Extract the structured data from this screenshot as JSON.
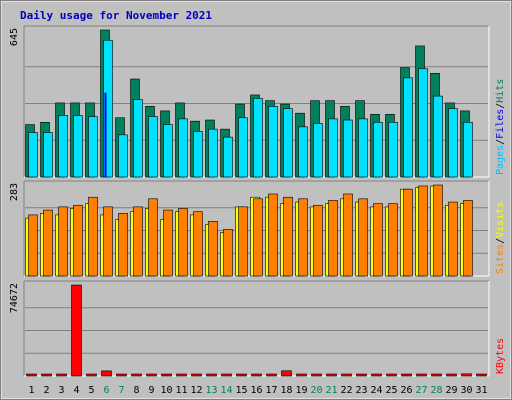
{
  "chart_data": {
    "type": "bar",
    "title": "Daily usage for November 2021",
    "categories": [
      "1",
      "2",
      "3",
      "4",
      "5",
      "6",
      "7",
      "8",
      "9",
      "10",
      "11",
      "12",
      "13",
      "14",
      "15",
      "16",
      "17",
      "18",
      "19",
      "20",
      "21",
      "22",
      "23",
      "24",
      "25",
      "26",
      "27",
      "28",
      "29",
      "30",
      "31"
    ],
    "weekend_days": [
      "6",
      "7",
      "13",
      "14",
      "20",
      "21",
      "27",
      "28"
    ],
    "colors": {
      "hits": "#00805c",
      "files": "#00e0ff",
      "pages": "#00c0ff",
      "visits": "#ffff00",
      "sites": "#ff8000",
      "kbytes": "#ff0000",
      "title": "#0000c0",
      "weekend": "#00805c",
      "weekday": "#000000",
      "background": "#c0c0c0"
    },
    "panels": [
      {
        "id": "hits-files-pages",
        "max_label": "645",
        "legend": [
          {
            "name": "Pages",
            "color": "#00c0ff"
          },
          {
            "name": "/",
            "color": "#000000"
          },
          {
            "name": "Files",
            "color": "#0000ff"
          },
          {
            "name": "/",
            "color": "#000000"
          },
          {
            "name": "Hits",
            "color": "#00805c"
          }
        ],
        "series": [
          {
            "name": "Hits",
            "values": [
              230,
              240,
              325,
              325,
              325,
              645,
              260,
              430,
              310,
              290,
              325,
              245,
              250,
              210,
              320,
              360,
              335,
              320,
              280,
              335,
              335,
              310,
              335,
              275,
              275,
              480,
              575,
              455,
              325,
              290,
              0
            ]
          },
          {
            "name": "Files",
            "values": [
              195,
              195,
              270,
              270,
              265,
              600,
              185,
              340,
              265,
              230,
              255,
              200,
              210,
              175,
              260,
              345,
              310,
              300,
              220,
              235,
              255,
              250,
              255,
              240,
              240,
              435,
              475,
              355,
              300,
              240,
              0
            ]
          },
          {
            "name": "Pages",
            "values": [
              0,
              0,
              0,
              0,
              0,
              370,
              0,
              0,
              0,
              0,
              0,
              0,
              0,
              0,
              0,
              0,
              0,
              0,
              0,
              0,
              0,
              0,
              0,
              0,
              0,
              0,
              0,
              0,
              0,
              0,
              0
            ]
          }
        ],
        "ylim": [
          0,
          645
        ]
      },
      {
        "id": "visits-sites",
        "max_label": "283",
        "legend": [
          {
            "name": "Sites",
            "color": "#ff8000"
          },
          {
            "name": "/",
            "color": "#000000"
          },
          {
            "name": "Visits",
            "color": "#ffff00"
          }
        ],
        "series": [
          {
            "name": "Visits",
            "values": [
              180,
              195,
              190,
              210,
              225,
              190,
              175,
              200,
              210,
              175,
              200,
              190,
              160,
              135,
              215,
              245,
              245,
              225,
              230,
              215,
              225,
              240,
              230,
              215,
              215,
              270,
              275,
              280,
              220,
              225,
              0
            ]
          },
          {
            "name": "Sites",
            "values": [
              190,
              205,
              215,
              220,
              245,
              215,
              195,
              215,
              240,
              205,
              210,
              200,
              170,
              145,
              215,
              240,
              255,
              245,
              240,
              220,
              235,
              255,
              240,
              225,
              225,
              270,
              280,
              283,
              230,
              235,
              0
            ]
          }
        ],
        "ylim": [
          0,
          283
        ]
      },
      {
        "id": "kbytes",
        "max_label": "74672",
        "legend": [
          {
            "name": "KBytes",
            "color": "#ff0000"
          }
        ],
        "series": [
          {
            "name": "KBytes",
            "values": [
              0,
              0,
              0,
              74672,
              0,
              4200,
              0,
              0,
              1500,
              0,
              0,
              0,
              0,
              0,
              0,
              0,
              0,
              4300,
              0,
              0,
              0,
              0,
              0,
              0,
              0,
              0,
              0,
              0,
              0,
              1800,
              0
            ]
          }
        ],
        "ylim": [
          0,
          74672
        ]
      }
    ]
  }
}
